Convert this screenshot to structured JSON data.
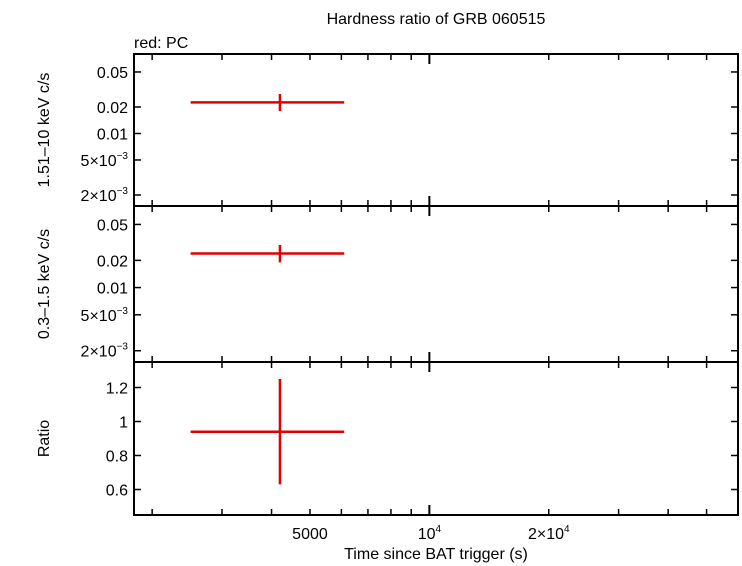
{
  "figure": {
    "title": "Hardness ratio of GRB 060515",
    "note": "red: PC",
    "xlabel": "Time since BAT trigger (s)",
    "series_color": "#e00000",
    "axis_color": "#000000"
  },
  "x_axis": {
    "scale": "log",
    "range": [
      1800,
      60000
    ],
    "tick_labels": [
      {
        "value": 5000,
        "base": "5000",
        "exp": ""
      },
      {
        "value": 10000,
        "base": "10",
        "exp": "4"
      },
      {
        "value": 20000,
        "base": "2×10",
        "exp": "4"
      }
    ],
    "minor_ticks": [
      2000,
      3000,
      4000,
      5000,
      6000,
      7000,
      8000,
      9000,
      10000,
      20000,
      30000,
      40000,
      50000
    ]
  },
  "chart_data": [
    {
      "type": "scatter",
      "panel": "top",
      "ylabel": "1.51–10 keV c/s",
      "yscale": "log",
      "ylim": [
        0.0015,
        0.08
      ],
      "y_tick_labels": [
        {
          "value": 0.05,
          "base": "0.05",
          "exp": ""
        },
        {
          "value": 0.02,
          "base": "0.02",
          "exp": ""
        },
        {
          "value": 0.01,
          "base": "0.01",
          "exp": ""
        },
        {
          "value": 0.005,
          "base": "5×10",
          "exp": "−3"
        },
        {
          "value": 0.002,
          "base": "2×10",
          "exp": "−3"
        }
      ],
      "points": [
        {
          "x": 4200,
          "x_err_low": 1700,
          "x_err_high": 1900,
          "y": 0.0226,
          "y_err_low": 0.0046,
          "y_err_high": 0.0055
        }
      ]
    },
    {
      "type": "scatter",
      "panel": "middle",
      "ylabel": "0.3–1.5 keV c/s",
      "yscale": "log",
      "ylim": [
        0.0015,
        0.08
      ],
      "y_tick_labels": [
        {
          "value": 0.05,
          "base": "0.05",
          "exp": ""
        },
        {
          "value": 0.02,
          "base": "0.02",
          "exp": ""
        },
        {
          "value": 0.01,
          "base": "0.01",
          "exp": ""
        },
        {
          "value": 0.005,
          "base": "5×10",
          "exp": "−3"
        },
        {
          "value": 0.002,
          "base": "2×10",
          "exp": "−3"
        }
      ],
      "points": [
        {
          "x": 4200,
          "x_err_low": 1700,
          "x_err_high": 1900,
          "y": 0.0238,
          "y_err_low": 0.0048,
          "y_err_high": 0.0058
        }
      ]
    },
    {
      "type": "scatter",
      "panel": "bottom",
      "ylabel": "Ratio",
      "yscale": "linear",
      "ylim": [
        0.45,
        1.35
      ],
      "y_tick_labels": [
        {
          "value": 1.2,
          "base": "1.2",
          "exp": ""
        },
        {
          "value": 1.0,
          "base": "1",
          "exp": ""
        },
        {
          "value": 0.8,
          "base": "0.8",
          "exp": ""
        },
        {
          "value": 0.6,
          "base": "0.6",
          "exp": ""
        }
      ],
      "points": [
        {
          "x": 4200,
          "x_err_low": 1700,
          "x_err_high": 1900,
          "y": 0.94,
          "y_err_low": 0.31,
          "y_err_high": 0.31
        }
      ]
    }
  ]
}
